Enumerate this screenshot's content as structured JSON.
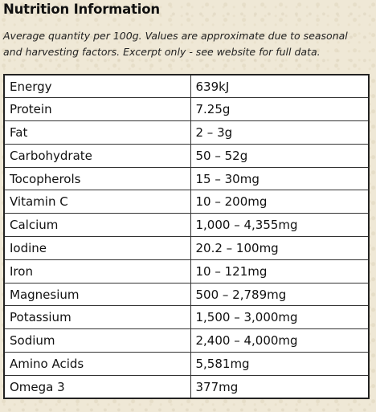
{
  "title": "Nutrition Information",
  "note": "Average quantity per 100g. Values are approximate due to seasonal and harvesting factors. Excerpt only - see website for full data.",
  "rows": [
    {
      "nutrient": "Energy",
      "amount": "639kJ"
    },
    {
      "nutrient": "Protein",
      "amount": "7.25g"
    },
    {
      "nutrient": "Fat",
      "amount": "2 – 3g"
    },
    {
      "nutrient": "Carbohydrate",
      "amount": "50 – 52g"
    },
    {
      "nutrient": "Tocopherols",
      "amount": "15 – 30mg"
    },
    {
      "nutrient": "Vitamin C",
      "amount": "10 – 200mg"
    },
    {
      "nutrient": "Calcium",
      "amount": "1,000 – 4,355mg"
    },
    {
      "nutrient": "Iodine",
      "amount": "20.2 – 100mg"
    },
    {
      "nutrient": "Iron",
      "amount": "10 – 121mg"
    },
    {
      "nutrient": "Magnesium",
      "amount": "500 – 2,789mg"
    },
    {
      "nutrient": "Potassium",
      "amount": "1,500 – 3,000mg"
    },
    {
      "nutrient": "Sodium",
      "amount": "2,400 – 4,000mg"
    },
    {
      "nutrient": "Amino Acids",
      "amount": "5,581mg"
    },
    {
      "nutrient": "Omega 3",
      "amount": "377mg"
    }
  ]
}
